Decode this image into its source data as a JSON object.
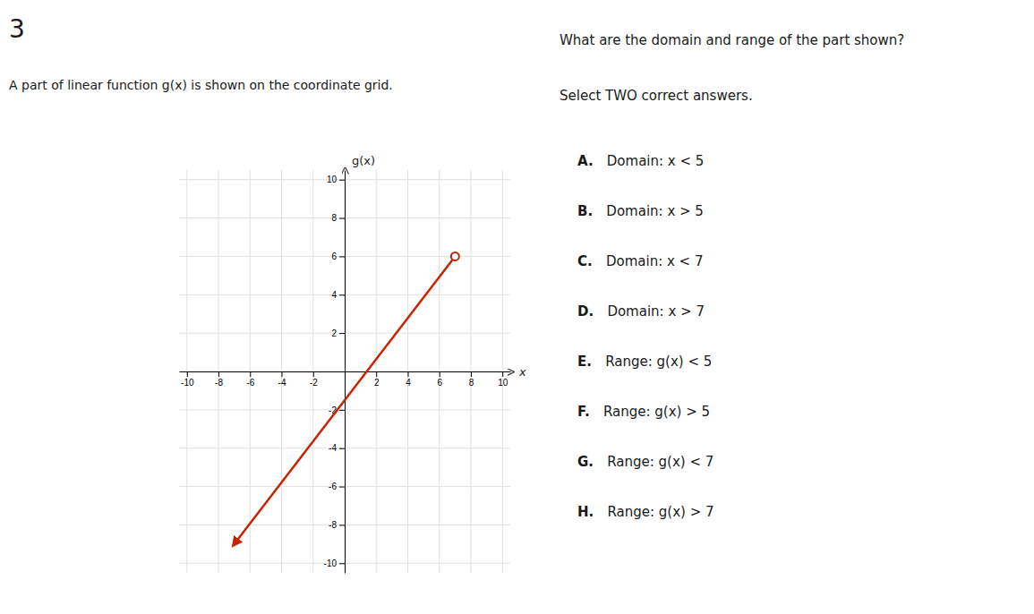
{
  "chart_data": {
    "type": "line",
    "title": "3",
    "subtitle": "A part of linear function g(x) is shown on the coordinate grid.",
    "annotations": [
      "What are the domain and range of the part shown?",
      "Select TWO correct answers.",
      "A. Domain: x < 5",
      "B. Domain: x > 5",
      "C. Domain: x < 7",
      "D. Domain: x > 7",
      "E. Range: g(x) < 5",
      "F. Range: g(x) > 5",
      "G. Range: g(x) < 7",
      "H. Range: g(x) > 7"
    ],
    "xlabel": "x",
    "ylabel": "g(x)",
    "x": [
      -7,
      7
    ],
    "values": [
      -9,
      6
    ],
    "color": "#cc2200",
    "xlim": [
      -10.5,
      10.5
    ],
    "ylim": [
      -10.5,
      10.5
    ],
    "xticks": [
      -10,
      -8,
      -6,
      -4,
      -2,
      2,
      4,
      6,
      8,
      10
    ],
    "yticks": [
      -10,
      -8,
      -6,
      -4,
      -2,
      2,
      4,
      6,
      8,
      10
    ],
    "grid": true
  }
}
